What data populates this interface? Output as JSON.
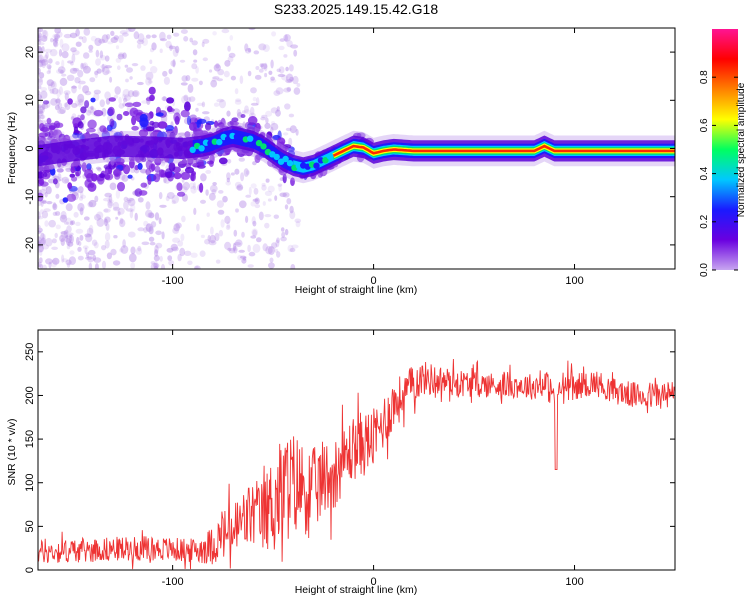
{
  "title": "S233.2025.149.15.42.G18",
  "chart_data": [
    {
      "type": "heatmap",
      "xlabel": "Height of straight line (km)",
      "ylabel": "Frequency (Hz)",
      "xlim": [
        -167,
        150
      ],
      "ylim": [
        -25,
        25
      ],
      "xticks": [
        -100,
        0,
        100
      ],
      "yticks": [
        -20,
        -10,
        0,
        10,
        20
      ],
      "ridge": {
        "x": [
          -167,
          -150,
          -130,
          -110,
          -95,
          -85,
          -80,
          -75,
          -70,
          -65,
          -60,
          -55,
          -50,
          -45,
          -40,
          -35,
          -30,
          -25,
          -20,
          -15,
          -10,
          -5,
          0,
          5,
          10,
          20,
          40,
          60,
          80,
          85,
          90,
          100,
          120,
          140,
          150
        ],
        "y": [
          -1.5,
          -0.5,
          0.5,
          0.3,
          0.0,
          0.5,
          1.0,
          2.0,
          2.5,
          2.0,
          1.5,
          0.5,
          -1.0,
          -2.5,
          -3.5,
          -4.0,
          -3.5,
          -2.5,
          -1.5,
          -0.5,
          0.5,
          0.2,
          -1.0,
          -0.5,
          -0.2,
          -0.5,
          -0.5,
          -0.5,
          -0.5,
          0.5,
          -0.5,
          -0.5,
          -0.5,
          -0.5,
          -0.5
        ]
      },
      "colorbar": {
        "label": "Normalized spectral amplitude",
        "ticks": [
          "0.0",
          "0.2",
          "0.4",
          "0.6",
          "0.8"
        ],
        "tick_values": [
          0.0,
          0.2,
          0.4,
          0.6,
          0.8
        ],
        "range": [
          0,
          1
        ],
        "colormap": [
          "#c8a6f0",
          "#6a00e0",
          "#1a1aff",
          "#00c8ff",
          "#00ff60",
          "#ffff00",
          "#ff8000",
          "#ff0000",
          "#ff1493"
        ]
      }
    },
    {
      "type": "line",
      "xlabel": "Height of straight line (km)",
      "ylabel": "SNR (10 * v/v)",
      "xlim": [
        -167,
        150
      ],
      "ylim": [
        0,
        275
      ],
      "xticks": [
        -100,
        0,
        100
      ],
      "yticks": [
        0,
        50,
        100,
        150,
        200,
        250
      ],
      "color": "#ee3333",
      "series": [
        {
          "x": [
            -167,
            -150,
            -130,
            -110,
            -90,
            -80,
            -75,
            -70,
            -65,
            -60,
            -55,
            -50,
            -45,
            -40,
            -35,
            -30,
            -25,
            -20,
            -15,
            -10,
            -5,
            0,
            5,
            10,
            15,
            20,
            25,
            30,
            40,
            50,
            60,
            70,
            80,
            85,
            90,
            95,
            100,
            110,
            120,
            130,
            140,
            150
          ],
          "values": [
            20,
            22,
            24,
            25,
            22,
            28,
            40,
            45,
            55,
            65,
            60,
            80,
            90,
            100,
            95,
            90,
            105,
            110,
            125,
            140,
            145,
            150,
            170,
            190,
            200,
            215,
            220,
            218,
            215,
            213,
            212,
            212,
            210,
            215,
            200,
            212,
            210,
            215,
            205,
            200,
            200,
            200
          ],
          "noise": [
            14,
            14,
            14,
            14,
            14,
            22,
            30,
            34,
            38,
            40,
            42,
            55,
            65,
            60,
            55,
            50,
            45,
            40,
            38,
            38,
            38,
            35,
            32,
            30,
            25,
            22,
            20,
            18,
            16,
            15,
            15,
            15,
            15,
            16,
            18,
            18,
            15,
            15,
            15,
            15,
            16,
            18
          ]
        }
      ]
    }
  ]
}
